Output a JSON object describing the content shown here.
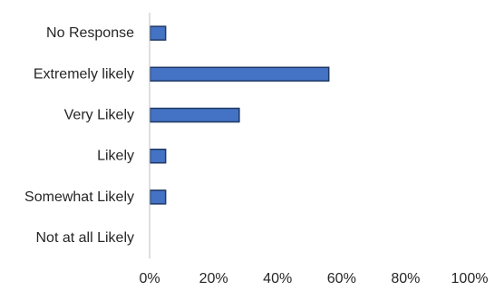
{
  "chart_data": {
    "type": "bar",
    "orientation": "horizontal",
    "categories": [
      "No Response",
      "Extremely likely",
      "Very Likely",
      "Likely",
      "Somewhat Likely",
      "Not at all Likely"
    ],
    "values": [
      5,
      56,
      28,
      5,
      5,
      0
    ],
    "xlim": [
      0,
      100
    ],
    "xticks": [
      "0%",
      "20%",
      "40%",
      "60%",
      "80%",
      "100%"
    ],
    "tick_values": [
      0,
      20,
      40,
      60,
      80,
      100
    ],
    "grid": false,
    "bar_fill": "#4472C4",
    "bar_stroke": "#1F3864"
  }
}
